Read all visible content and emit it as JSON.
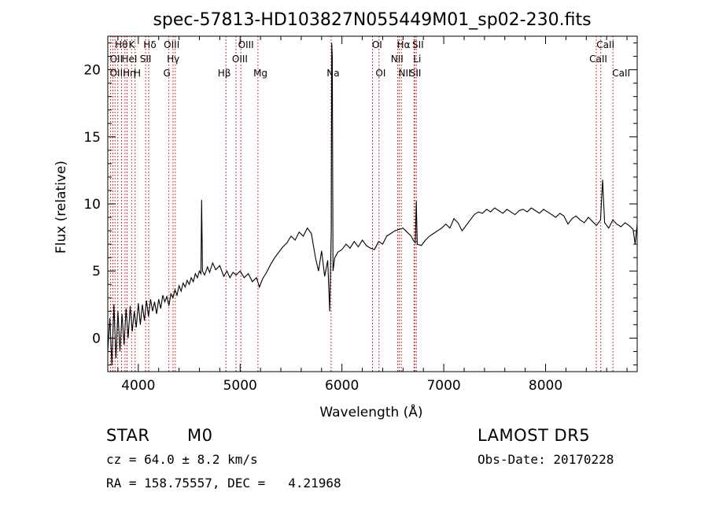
{
  "chart_data": {
    "type": "line",
    "title": "spec-57813-HD103827N055449M01_sp02-230.fits",
    "xlabel": "Wavelength (Å)",
    "ylabel": "Flux (relative)",
    "xlim": [
      3700,
      8900
    ],
    "ylim": [
      -2.5,
      22.5
    ],
    "xticks": [
      4000,
      5000,
      6000,
      7000,
      8000
    ],
    "yticks": [
      0,
      5,
      10,
      15,
      20
    ],
    "grid": false,
    "series": [
      {
        "points": [
          [
            3700,
            -1.0
          ],
          [
            3720,
            1.5
          ],
          [
            3740,
            -2.0
          ],
          [
            3760,
            2.5
          ],
          [
            3780,
            -1.5
          ],
          [
            3800,
            2.0
          ],
          [
            3820,
            -1.0
          ],
          [
            3840,
            1.8
          ],
          [
            3860,
            -0.5
          ],
          [
            3880,
            2.2
          ],
          [
            3900,
            0.0
          ],
          [
            3920,
            2.4
          ],
          [
            3940,
            0.5
          ],
          [
            3960,
            2.0
          ],
          [
            3980,
            0.8
          ],
          [
            4000,
            2.6
          ],
          [
            4020,
            1.0
          ],
          [
            4040,
            2.5
          ],
          [
            4060,
            1.3
          ],
          [
            4080,
            2.8
          ],
          [
            4100,
            1.6
          ],
          [
            4120,
            2.9
          ],
          [
            4140,
            2.0
          ],
          [
            4160,
            2.7
          ],
          [
            4180,
            1.8
          ],
          [
            4200,
            2.9
          ],
          [
            4220,
            2.2
          ],
          [
            4240,
            3.2
          ],
          [
            4260,
            2.7
          ],
          [
            4280,
            3.1
          ],
          [
            4300,
            2.4
          ],
          [
            4320,
            3.3
          ],
          [
            4340,
            3.0
          ],
          [
            4360,
            3.6
          ],
          [
            4380,
            3.2
          ],
          [
            4400,
            3.9
          ],
          [
            4420,
            3.5
          ],
          [
            4440,
            4.1
          ],
          [
            4460,
            3.8
          ],
          [
            4480,
            4.3
          ],
          [
            4500,
            4.0
          ],
          [
            4520,
            4.5
          ],
          [
            4540,
            4.2
          ],
          [
            4560,
            4.8
          ],
          [
            4580,
            4.5
          ],
          [
            4600,
            5.0
          ],
          [
            4615,
            4.8
          ],
          [
            4622,
            10.3
          ],
          [
            4630,
            5.0
          ],
          [
            4650,
            4.7
          ],
          [
            4680,
            5.3
          ],
          [
            4700,
            4.9
          ],
          [
            4730,
            5.6
          ],
          [
            4760,
            5.1
          ],
          [
            4800,
            5.4
          ],
          [
            4840,
            4.6
          ],
          [
            4870,
            5.0
          ],
          [
            4900,
            4.5
          ],
          [
            4930,
            4.9
          ],
          [
            4960,
            4.7
          ],
          [
            5000,
            5.0
          ],
          [
            5040,
            4.5
          ],
          [
            5080,
            4.8
          ],
          [
            5120,
            4.2
          ],
          [
            5160,
            4.5
          ],
          [
            5190,
            3.8
          ],
          [
            5220,
            4.4
          ],
          [
            5260,
            4.9
          ],
          [
            5300,
            5.5
          ],
          [
            5340,
            6.0
          ],
          [
            5380,
            6.4
          ],
          [
            5420,
            6.8
          ],
          [
            5460,
            7.1
          ],
          [
            5500,
            7.6
          ],
          [
            5540,
            7.3
          ],
          [
            5580,
            7.9
          ],
          [
            5620,
            7.6
          ],
          [
            5660,
            8.2
          ],
          [
            5700,
            7.8
          ],
          [
            5740,
            6.0
          ],
          [
            5770,
            5.0
          ],
          [
            5800,
            6.5
          ],
          [
            5830,
            4.6
          ],
          [
            5860,
            5.8
          ],
          [
            5880,
            2.0
          ],
          [
            5895,
            8.0
          ],
          [
            5900,
            22.0
          ],
          [
            5905,
            21.0
          ],
          [
            5912,
            5.0
          ],
          [
            5930,
            6.0
          ],
          [
            5960,
            6.4
          ],
          [
            6000,
            6.6
          ],
          [
            6040,
            7.0
          ],
          [
            6080,
            6.7
          ],
          [
            6120,
            7.2
          ],
          [
            6160,
            6.8
          ],
          [
            6200,
            7.3
          ],
          [
            6240,
            6.9
          ],
          [
            6280,
            6.7
          ],
          [
            6320,
            6.6
          ],
          [
            6360,
            7.2
          ],
          [
            6400,
            7.0
          ],
          [
            6440,
            7.6
          ],
          [
            6480,
            7.8
          ],
          [
            6520,
            8.0
          ],
          [
            6560,
            8.1
          ],
          [
            6600,
            8.2
          ],
          [
            6640,
            7.9
          ],
          [
            6680,
            7.6
          ],
          [
            6700,
            7.3
          ],
          [
            6720,
            7.1
          ],
          [
            6730,
            10.2
          ],
          [
            6740,
            7.0
          ],
          [
            6780,
            6.9
          ],
          [
            6820,
            7.3
          ],
          [
            6860,
            7.6
          ],
          [
            6900,
            7.8
          ],
          [
            6940,
            8.0
          ],
          [
            6980,
            8.2
          ],
          [
            7020,
            8.5
          ],
          [
            7060,
            8.2
          ],
          [
            7100,
            8.9
          ],
          [
            7140,
            8.6
          ],
          [
            7180,
            8.0
          ],
          [
            7220,
            8.4
          ],
          [
            7260,
            8.8
          ],
          [
            7300,
            9.2
          ],
          [
            7340,
            9.4
          ],
          [
            7380,
            9.3
          ],
          [
            7420,
            9.6
          ],
          [
            7460,
            9.4
          ],
          [
            7500,
            9.7
          ],
          [
            7540,
            9.5
          ],
          [
            7580,
            9.3
          ],
          [
            7620,
            9.6
          ],
          [
            7660,
            9.4
          ],
          [
            7700,
            9.2
          ],
          [
            7740,
            9.5
          ],
          [
            7780,
            9.6
          ],
          [
            7820,
            9.4
          ],
          [
            7860,
            9.7
          ],
          [
            7900,
            9.5
          ],
          [
            7940,
            9.3
          ],
          [
            7980,
            9.6
          ],
          [
            8020,
            9.4
          ],
          [
            8060,
            9.2
          ],
          [
            8100,
            9.0
          ],
          [
            8140,
            9.3
          ],
          [
            8180,
            9.1
          ],
          [
            8220,
            8.5
          ],
          [
            8260,
            8.9
          ],
          [
            8300,
            9.1
          ],
          [
            8340,
            8.8
          ],
          [
            8380,
            8.6
          ],
          [
            8420,
            9.0
          ],
          [
            8460,
            8.7
          ],
          [
            8500,
            8.4
          ],
          [
            8540,
            8.8
          ],
          [
            8560,
            11.8
          ],
          [
            8580,
            8.6
          ],
          [
            8620,
            8.2
          ],
          [
            8660,
            8.8
          ],
          [
            8700,
            8.5
          ],
          [
            8740,
            8.3
          ],
          [
            8780,
            8.6
          ],
          [
            8820,
            8.4
          ],
          [
            8860,
            8.1
          ],
          [
            8880,
            7.0
          ],
          [
            8900,
            8.5
          ]
        ]
      }
    ],
    "lines": [
      {
        "wl": 3728,
        "labels": [
          "OII"
        ]
      },
      {
        "wl": 3750,
        "labels": [
          "OII"
        ]
      },
      {
        "wl": 3771,
        "labels": [
          "Hη"
        ]
      },
      {
        "wl": 3798,
        "labels": [
          "Hθ"
        ]
      },
      {
        "wl": 3835,
        "labels": [
          ""
        ]
      },
      {
        "wl": 3869,
        "labels": [
          "HeI"
        ]
      },
      {
        "wl": 3889,
        "labels": [
          ""
        ]
      },
      {
        "wl": 3934,
        "labels": [
          "K"
        ]
      },
      {
        "wl": 3968,
        "labels": [
          "H"
        ]
      },
      {
        "wl": 4072,
        "labels": [
          "SII"
        ]
      },
      {
        "wl": 4102,
        "labels": [
          "Hδ"
        ]
      },
      {
        "wl": 4300,
        "labels": [
          "G"
        ]
      },
      {
        "wl": 4341,
        "labels": [
          "Hγ"
        ]
      },
      {
        "wl": 4363,
        "labels": [
          "OIII"
        ]
      },
      {
        "wl": 4861,
        "labels": [
          "Hβ"
        ]
      },
      {
        "wl": 4959,
        "labels": [
          "OIII"
        ]
      },
      {
        "wl": 5007,
        "labels": [
          "OIII"
        ]
      },
      {
        "wl": 5175,
        "labels": [
          "Mg"
        ]
      },
      {
        "wl": 5893,
        "labels": [
          "Na"
        ]
      },
      {
        "wl": 6300,
        "labels": [
          "OI"
        ]
      },
      {
        "wl": 6364,
        "labels": [
          "OI"
        ]
      },
      {
        "wl": 6548,
        "labels": [
          "NII"
        ]
      },
      {
        "wl": 6563,
        "labels": [
          "Hα"
        ]
      },
      {
        "wl": 6583,
        "labels": [
          "NII"
        ]
      },
      {
        "wl": 6708,
        "labels": [
          "Li"
        ]
      },
      {
        "wl": 6716,
        "labels": [
          "SII"
        ]
      },
      {
        "wl": 6731,
        "labels": [
          "SII"
        ]
      },
      {
        "wl": 8498,
        "labels": [
          "CaII"
        ]
      },
      {
        "wl": 8542,
        "labels": [
          "CaII"
        ]
      },
      {
        "wl": 8662,
        "labels": [
          "CaII"
        ]
      }
    ],
    "line_labels": [
      {
        "text": "Hθ",
        "wl": 3770,
        "row": 0
      },
      {
        "text": "K",
        "wl": 3905,
        "row": 0
      },
      {
        "text": "Hδ",
        "wl": 4050,
        "row": 0
      },
      {
        "text": "OIII",
        "wl": 4250,
        "row": 0
      },
      {
        "text": "OIII",
        "wl": 4980,
        "row": 0
      },
      {
        "text": "OI",
        "wl": 6295,
        "row": 0
      },
      {
        "text": "Hα",
        "wl": 6540,
        "row": 0
      },
      {
        "text": "SII",
        "wl": 6690,
        "row": 0
      },
      {
        "text": "CaII",
        "wl": 8500,
        "row": 0
      },
      {
        "text": "OII",
        "wl": 3720,
        "row": 1
      },
      {
        "text": "HeI",
        "wl": 3835,
        "row": 1
      },
      {
        "text": "SII",
        "wl": 4015,
        "row": 1
      },
      {
        "text": "Hγ",
        "wl": 4280,
        "row": 1
      },
      {
        "text": "OIII",
        "wl": 4920,
        "row": 1
      },
      {
        "text": "NII",
        "wl": 6480,
        "row": 1
      },
      {
        "text": "Li",
        "wl": 6700,
        "row": 1
      },
      {
        "text": "CaII",
        "wl": 8430,
        "row": 1
      },
      {
        "text": "OIIHη",
        "wl": 3720,
        "row": 2
      },
      {
        "text": "H",
        "wl": 3955,
        "row": 2
      },
      {
        "text": "G",
        "wl": 4245,
        "row": 2
      },
      {
        "text": "Hβ",
        "wl": 4780,
        "row": 2
      },
      {
        "text": "Mg",
        "wl": 5130,
        "row": 2
      },
      {
        "text": "Na",
        "wl": 5850,
        "row": 2
      },
      {
        "text": "OI",
        "wl": 6330,
        "row": 2
      },
      {
        "text": "NII",
        "wl": 6555,
        "row": 2
      },
      {
        "text": "SII",
        "wl": 6665,
        "row": 2
      },
      {
        "text": "CaII",
        "wl": 8655,
        "row": 2
      }
    ]
  },
  "info": {
    "object_class": "STAR",
    "subclass": "M0",
    "survey": "LAMOST DR5",
    "redshift": "cz = 64.0 ± 8.2 km/s",
    "obs_date": "Obs-Date: 20170228",
    "coords": "RA = 158.75557, DEC =   4.21968"
  },
  "colors": {
    "line_marker": "#c00000",
    "spectrum": "#000000",
    "axes": "#000000"
  }
}
